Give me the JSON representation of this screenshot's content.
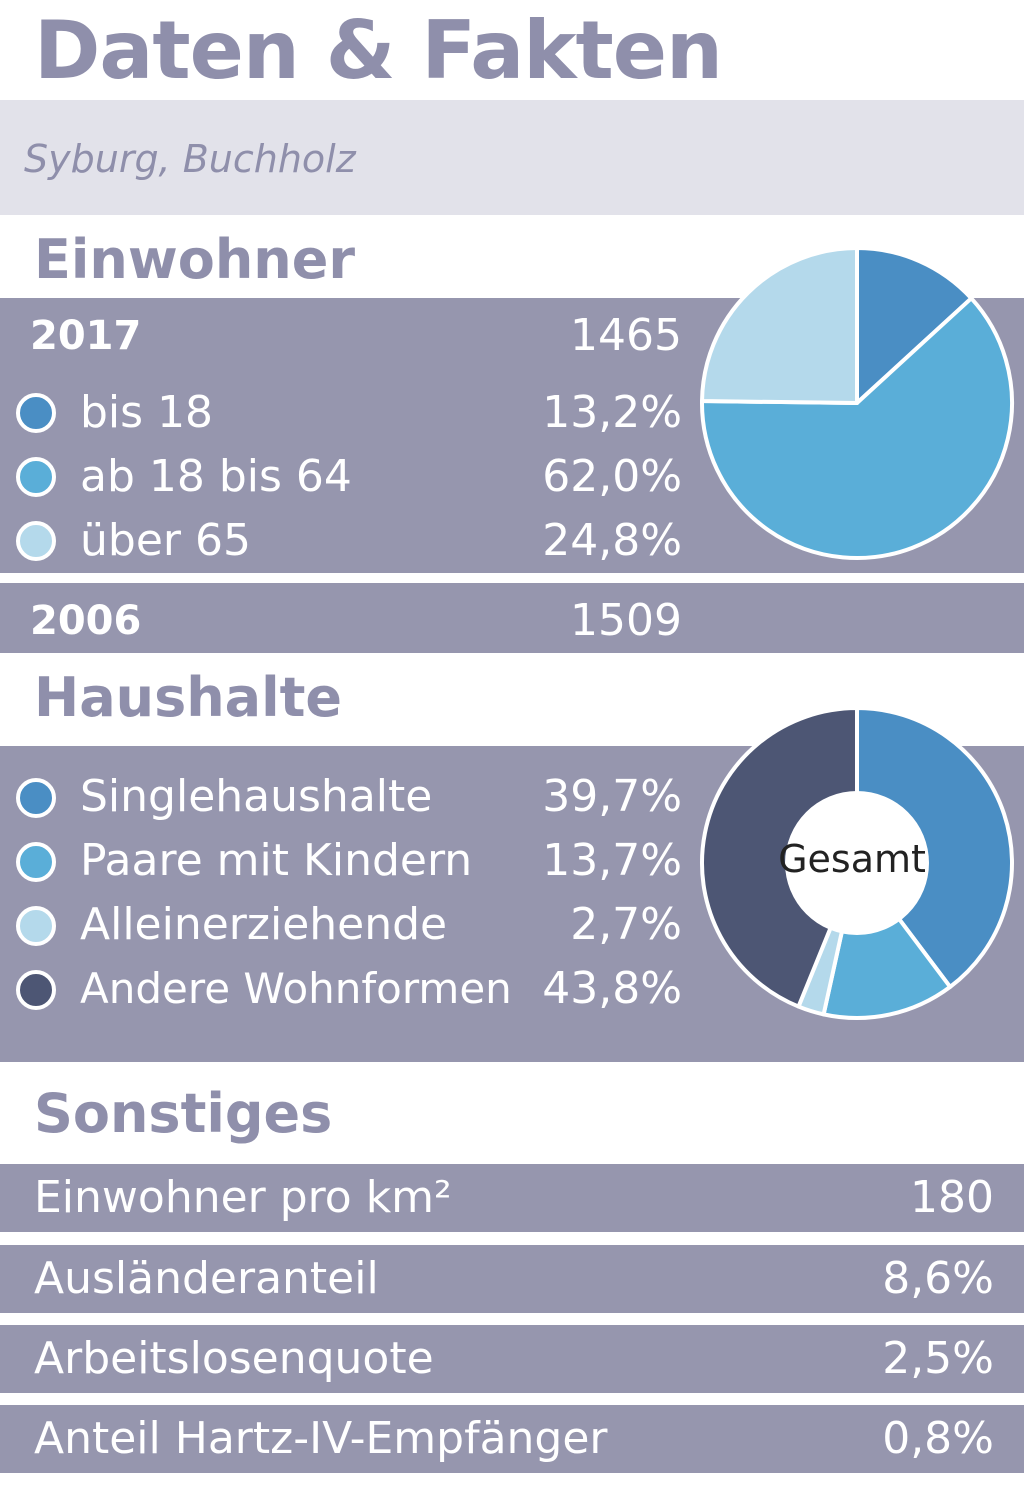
{
  "header": {
    "title": "Daten & Fakten",
    "subtitle": "Syburg, Buchholz"
  },
  "einwohner": {
    "heading": "Einwohner",
    "year_2017_label": "2017",
    "year_2017_value": "1465",
    "year_2006_label": "2006",
    "year_2006_value": "1509",
    "groups": [
      {
        "label": "bis 18",
        "value_text": "13,2%",
        "color": "#4a8ec4"
      },
      {
        "label": "ab 18 bis 64",
        "value_text": "62,0%",
        "color": "#5aaed8"
      },
      {
        "label": "über 65",
        "value_text": "24,8%",
        "color": "#b4d9eb"
      }
    ]
  },
  "haushalte": {
    "heading": "Haushalte",
    "center_label": "Gesamt",
    "groups": [
      {
        "label": "Singlehaushalte",
        "value_text": "39,7%",
        "color": "#4a8ec4"
      },
      {
        "label": "Paare mit Kindern",
        "value_text": "13,7%",
        "color": "#5aaed8"
      },
      {
        "label": "Alleinerziehende",
        "value_text": "2,7%",
        "color": "#b4d9eb"
      },
      {
        "label": "Andere Wohnformen",
        "value_text": "43,8%",
        "color": "#4d5674"
      }
    ]
  },
  "sonstiges": {
    "heading": "Sonstiges",
    "rows": [
      {
        "label": "Einwohner pro km²",
        "value": "180"
      },
      {
        "label": "Ausländeranteil",
        "value": "8,6%"
      },
      {
        "label": "Arbeitslosenquote",
        "value": "2,5%"
      },
      {
        "label": "Anteil Hartz-IV-Empfänger",
        "value": "0,8%"
      }
    ]
  },
  "chart_data": [
    {
      "type": "pie",
      "categories": [
        "bis 18",
        "ab 18 bis 64",
        "über 65"
      ],
      "values": [
        13.2,
        62.0,
        24.8
      ]
    },
    {
      "type": "pie",
      "categories": [
        "Singlehaushalte",
        "Paare mit Kindern",
        "Alleinerziehende",
        "Andere Wohnformen"
      ],
      "values": [
        39.7,
        13.7,
        2.7,
        43.8
      ]
    }
  ]
}
